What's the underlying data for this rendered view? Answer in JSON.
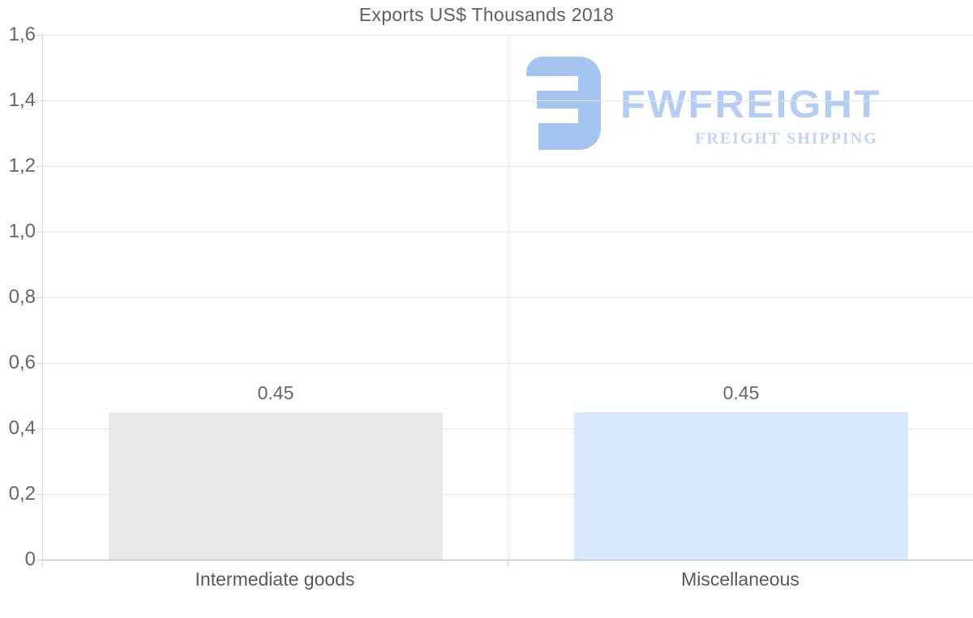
{
  "chart_data": {
    "type": "bar",
    "title": "Exports US$ Thousands 2018",
    "categories": [
      "Intermediate goods",
      "Miscellaneous"
    ],
    "values": [
      0.45,
      0.45
    ],
    "value_labels": [
      "0.45",
      "0.45"
    ],
    "bar_colors": [
      "#e9e9e9",
      "#d9e9fb"
    ],
    "xlabel": "",
    "ylabel": "",
    "ylim": [
      0,
      1.6
    ],
    "y_ticks": [
      0,
      0.2,
      0.4,
      0.6,
      0.8,
      1.0,
      1.2,
      1.4,
      1.6
    ],
    "y_tick_labels": [
      "0",
      "0,2",
      "0,4",
      "0,6",
      "0,8",
      "1,0",
      "1,2",
      "1,4",
      "1,6"
    ],
    "grid": "horizontal gridlines on, vertical separator between category bands",
    "legend": "none"
  },
  "watermark": {
    "brand": "FWFREIGHT",
    "tagline": "FREIGHT SHIPPING",
    "mark_color": "#a6c4f0",
    "brand_color": "#b5cdf3",
    "tagline_color": "#c0d4f6"
  },
  "colors": {
    "title_text": "#5f5f5f",
    "axis_text": "#666666",
    "category_text": "#595959",
    "gridline": "#e6e6e6",
    "y_axis_line": "#d8d8d8",
    "x_axis_line": "#b3b3b3",
    "background": "#ffffff"
  }
}
